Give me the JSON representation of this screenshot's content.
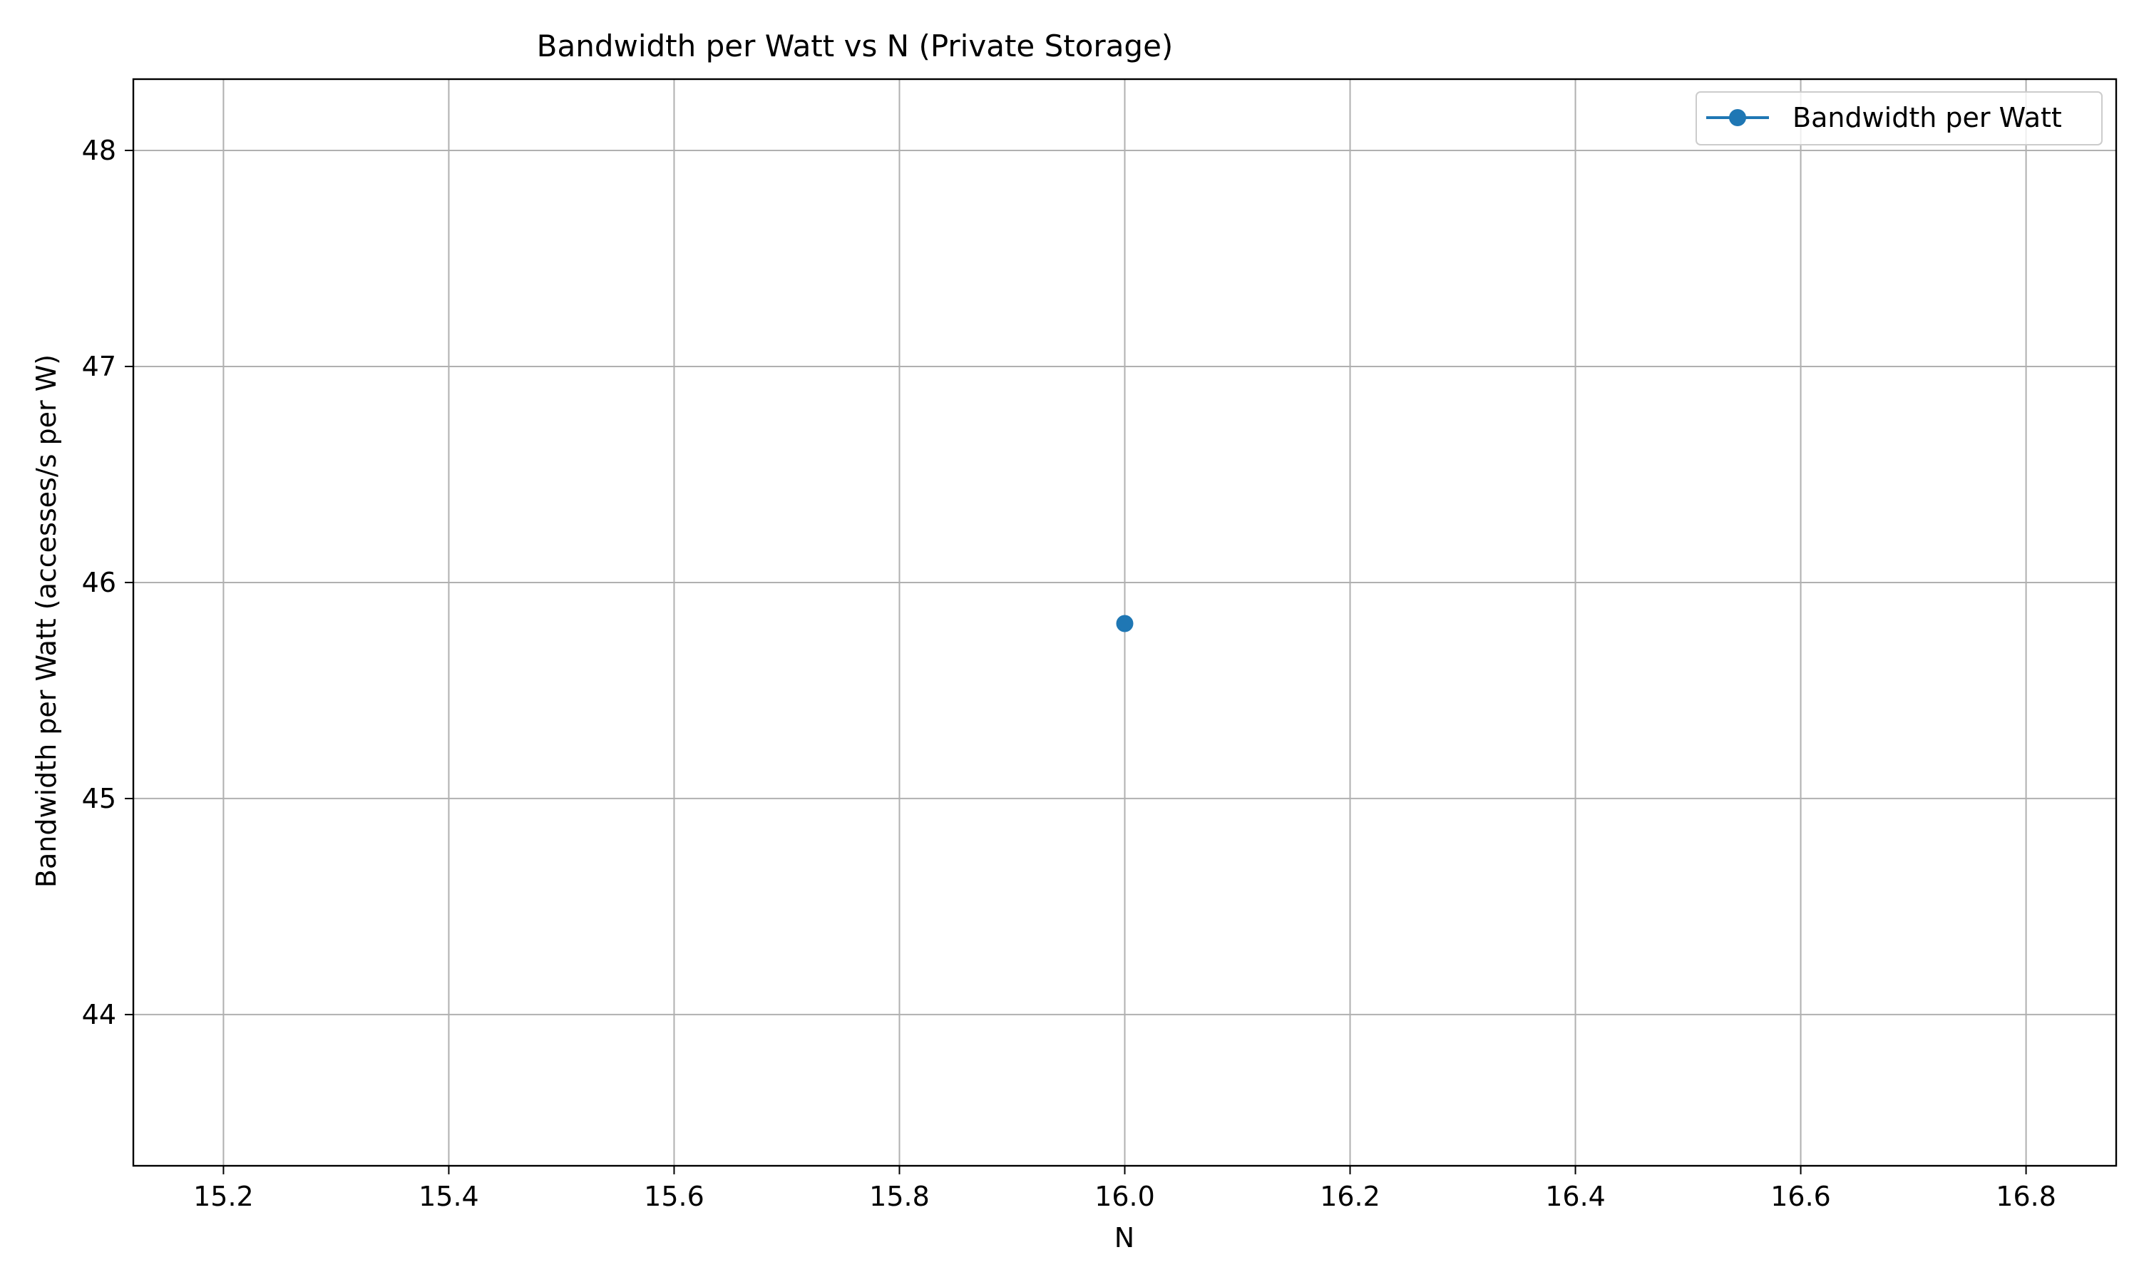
{
  "chart_data": {
    "type": "line",
    "title": "Bandwidth per Watt vs N (Private Storage)",
    "xlabel": "N",
    "ylabel": "Bandwidth per Watt (accesses/s per W)",
    "xlim": [
      15.12,
      16.88
    ],
    "ylim": [
      43.3,
      48.33
    ],
    "xticks": [
      "15.2",
      "15.4",
      "15.6",
      "15.8",
      "16.0",
      "16.2",
      "16.4",
      "16.6",
      "16.8"
    ],
    "yticks": [
      "44",
      "45",
      "46",
      "47",
      "48"
    ],
    "grid": true,
    "legend_position": "top-right",
    "series": [
      {
        "name": "Bandwidth per Watt",
        "color": "#1f77b4",
        "marker": "circle",
        "x": [
          16.0
        ],
        "y": [
          45.81
        ]
      }
    ]
  }
}
